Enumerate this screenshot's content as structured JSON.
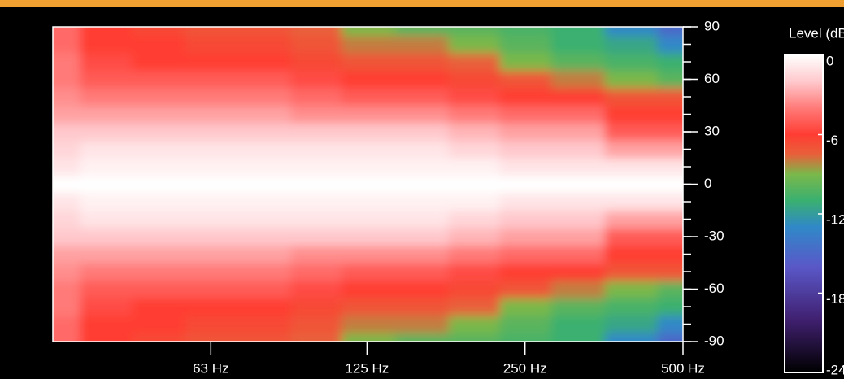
{
  "chart_data": {
    "type": "heatmap",
    "x": [
      31.5,
      40,
      50,
      63,
      80,
      100,
      125,
      160,
      200,
      250,
      315,
      400,
      500
    ],
    "y": [
      -90,
      -80,
      -70,
      -60,
      -50,
      -40,
      -30,
      -20,
      -10,
      0,
      10,
      20,
      30,
      40,
      50,
      60,
      70,
      80,
      90
    ],
    "z": [
      [
        -4.5,
        -4.5,
        -4,
        -4,
        -3.5,
        -3,
        -2,
        -1.5,
        -1,
        0,
        -1,
        -1.5,
        -2,
        -3,
        -3.5,
        -4,
        -4,
        -4.5,
        -4.5
      ],
      [
        -6,
        -6,
        -5.5,
        -5,
        -4,
        -3,
        -2,
        -1,
        -0.5,
        0,
        -0.5,
        -1,
        -2,
        -3,
        -4,
        -5,
        -5.5,
        -6,
        -6
      ],
      [
        -6.5,
        -6,
        -6,
        -5,
        -4,
        -3,
        -2,
        -1,
        -0.5,
        0,
        -0.5,
        -1,
        -2,
        -3,
        -4,
        -5,
        -6,
        -6,
        -6.5
      ],
      [
        -7,
        -6.5,
        -6,
        -5,
        -4,
        -3,
        -2,
        -1,
        -0.5,
        0,
        -0.5,
        -1,
        -2,
        -3,
        -4,
        -5,
        -6,
        -6.5,
        -7
      ],
      [
        -7,
        -6.5,
        -6,
        -5,
        -4,
        -3,
        -2,
        -1,
        -0.5,
        0,
        -0.5,
        -1,
        -2,
        -3,
        -4,
        -5,
        -6,
        -6.5,
        -7
      ],
      [
        -7.5,
        -7,
        -6.5,
        -5.5,
        -4.5,
        -3.5,
        -2,
        -1,
        -0.5,
        0,
        -0.5,
        -1,
        -2,
        -3.5,
        -4.5,
        -5.5,
        -6.5,
        -7,
        -7.5
      ],
      [
        -9,
        -8,
        -7,
        -6,
        -5,
        -3.5,
        -2,
        -1,
        -0.5,
        0,
        -0.5,
        -1,
        -2,
        -3.5,
        -5,
        -6,
        -7,
        -8,
        -9
      ],
      [
        -10,
        -8,
        -7,
        -6,
        -5,
        -3.5,
        -2,
        -1,
        -0.5,
        0,
        -0.5,
        -1,
        -2,
        -3.5,
        -5,
        -6,
        -7,
        -8,
        -10
      ],
      [
        -10,
        -9,
        -7.5,
        -6.5,
        -5.5,
        -4,
        -2.5,
        -1.5,
        -0.5,
        0,
        -0.5,
        -1.5,
        -2.5,
        -4,
        -5.5,
        -6.5,
        -7.5,
        -9,
        -10
      ],
      [
        -10.5,
        -10,
        -9,
        -7,
        -6,
        -4.5,
        -3,
        -2,
        -1,
        0,
        -1,
        -2,
        -3,
        -4.5,
        -6,
        -7,
        -9,
        -10,
        -10.5
      ],
      [
        -11,
        -11,
        -10,
        -8,
        -6,
        -4.5,
        -3,
        -2,
        -1,
        0,
        -1,
        -2,
        -3,
        -4.5,
        -6,
        -8,
        -10,
        -11,
        -11
      ],
      [
        -13,
        -11.5,
        -10.5,
        -9,
        -7,
        -6,
        -5,
        -3,
        -1,
        0,
        -1,
        -3,
        -5,
        -6,
        -7,
        -9,
        -10.5,
        -11.5,
        -13
      ],
      [
        -15,
        -13,
        -11,
        -10,
        -7,
        -6,
        -5,
        -3,
        -1,
        0,
        -1,
        -3,
        -5,
        -6,
        -7,
        -10,
        -11,
        -13,
        -15
      ]
    ],
    "xscale": "log",
    "xlim": [
      31.5,
      500
    ],
    "xticks": [
      {
        "value": 63,
        "label": "63 Hz"
      },
      {
        "value": 125,
        "label": "125 Hz"
      },
      {
        "value": 250,
        "label": "250 Hz"
      },
      {
        "value": 500,
        "label": "500 Hz"
      }
    ],
    "ylim": [
      -90,
      90
    ],
    "yticks": [
      90,
      60,
      30,
      0,
      -30,
      -60,
      -90
    ],
    "colorbar": {
      "title": "Level (dB)",
      "range": [
        -24,
        0
      ],
      "ticks": [
        0,
        -6,
        -12,
        -18,
        -24
      ]
    },
    "colorscale": [
      {
        "value": 0,
        "color": "#ffffff"
      },
      {
        "value": -2,
        "color": "#ffc8cc"
      },
      {
        "value": -4,
        "color": "#ff7a78"
      },
      {
        "value": -6,
        "color": "#ff3d33"
      },
      {
        "value": -7.5,
        "color": "#e8603a"
      },
      {
        "value": -9,
        "color": "#7ab84a"
      },
      {
        "value": -11,
        "color": "#3ab070"
      },
      {
        "value": -13,
        "color": "#3088c8"
      },
      {
        "value": -16,
        "color": "#5a58c8"
      },
      {
        "value": -20,
        "color": "#402070"
      },
      {
        "value": -24,
        "color": "#000000"
      }
    ],
    "header_color": "#f0a030"
  }
}
